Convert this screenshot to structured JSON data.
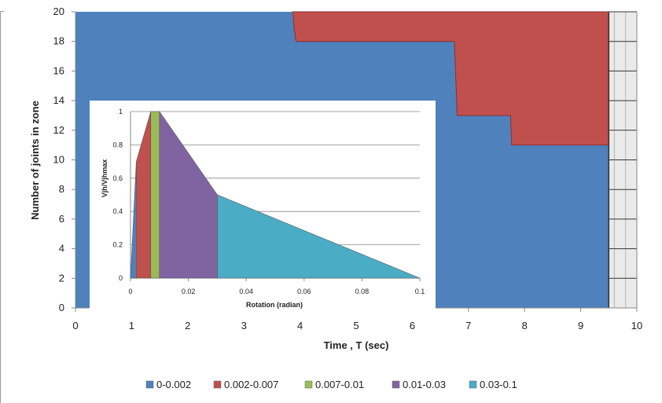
{
  "chart_data": [
    {
      "type": "area",
      "xlabel": "Time , T (sec)",
      "ylabel": "Number of joints in zone",
      "xlim": [
        0,
        10
      ],
      "ylim": [
        0,
        20
      ],
      "x_ticks": [
        "0",
        "1",
        "2",
        "3",
        "4",
        "5",
        "6",
        "7",
        "8",
        "9",
        "10"
      ],
      "y_ticks": [
        "0",
        "2",
        "4",
        "6",
        "8",
        "10",
        "12",
        "14",
        "16",
        "18",
        "20"
      ],
      "data_end_x": 9.5,
      "grid": true,
      "series": [
        {
          "name": "0-0.002",
          "color": "#4f81bd",
          "x": [
            0,
            9.5
          ],
          "y": [
            20,
            20
          ]
        },
        {
          "name": "0.002-0.007",
          "color": "#c0504d",
          "x": [
            3.87,
            3.9,
            3.93,
            6.75,
            6.8,
            7.75,
            7.77,
            9.5
          ],
          "y": [
            20,
            18.7,
            18,
            18,
            13,
            13,
            11,
            11
          ]
        }
      ],
      "legend": {
        "position": "bottom",
        "entries": [
          {
            "label": "0-0.002",
            "color": "#4f81bd"
          },
          {
            "label": "0.002-0.007",
            "color": "#c0504d"
          },
          {
            "label": "0.007-0.01",
            "color": "#9bbb59"
          },
          {
            "label": "0.01-0.03",
            "color": "#8064a2"
          },
          {
            "label": "0.03-0.1",
            "color": "#4bacc6"
          }
        ]
      }
    },
    {
      "type": "area",
      "xlabel": "Rotation (radian)",
      "ylabel": "Vjh/Vjhmax",
      "xlim": [
        0,
        0.1
      ],
      "ylim": [
        0,
        1
      ],
      "x_ticks": [
        "0",
        "0.02",
        "0.04",
        "0.06",
        "0.08",
        "0.1"
      ],
      "y_ticks": [
        "0",
        "0.2",
        "0.4",
        "0.6",
        "0.8",
        "1"
      ],
      "grid": true,
      "curve": {
        "x": [
          0,
          0.002,
          0.007,
          0.01,
          0.03,
          0.1
        ],
        "y": [
          0,
          0.7,
          1.0,
          1.0,
          0.5,
          0
        ]
      },
      "zones": [
        {
          "label": "0-0.002",
          "from": 0,
          "to": 0.002,
          "color": "#4f81bd"
        },
        {
          "label": "0.002-0.007",
          "from": 0.002,
          "to": 0.007,
          "color": "#c0504d"
        },
        {
          "label": "0.007-0.01",
          "from": 0.007,
          "to": 0.01,
          "color": "#9bbb59"
        },
        {
          "label": "0.01-0.03",
          "from": 0.01,
          "to": 0.03,
          "color": "#8064a2"
        },
        {
          "label": "0.03-0.1",
          "from": 0.03,
          "to": 0.1,
          "color": "#4bacc6"
        }
      ]
    }
  ]
}
